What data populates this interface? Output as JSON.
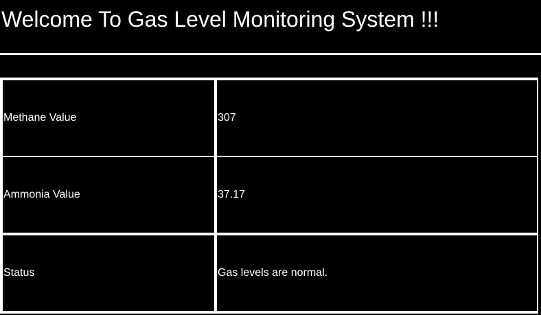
{
  "header": {
    "title": "Welcome To Gas Level Monitoring System !!!"
  },
  "readings": {
    "rows": [
      {
        "label": "Methane Value",
        "value": "307"
      },
      {
        "label": "Ammonia Value",
        "value": "37.17"
      },
      {
        "label": "Status",
        "value": "Gas levels are normal."
      }
    ]
  }
}
